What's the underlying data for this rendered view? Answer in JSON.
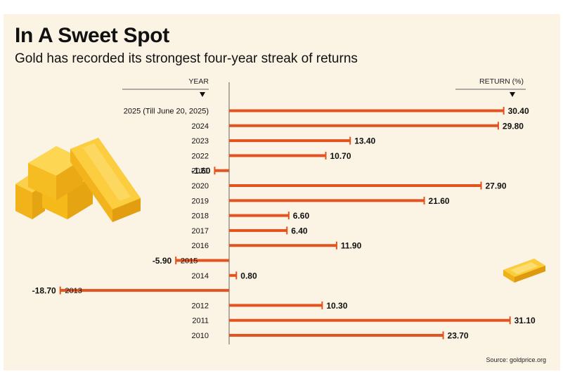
{
  "header": {
    "title": "In A Sweet Spot",
    "subtitle": "Gold has recorded its strongest four-year streak of returns"
  },
  "source": "Source: goldprice.org",
  "colors": {
    "background": "#fbf3e4",
    "bar": "#e2531f",
    "text": "#111111",
    "gold": "#f2b21a"
  },
  "decorations": [
    "gold-bars-stack-illustration",
    "single-gold-bar-illustration"
  ],
  "chart_data": {
    "type": "bar",
    "orientation": "horizontal",
    "category_header": "YEAR",
    "value_header": "RETURN (%)",
    "categories": [
      "2025 (Till June 20, 2025)",
      "2024",
      "2023",
      "2022",
      "2021",
      "2020",
      "2019",
      "2018",
      "2017",
      "2016",
      "2015",
      "2014",
      "2013",
      "2012",
      "2011",
      "2010"
    ],
    "values": [
      30.4,
      29.8,
      13.4,
      10.7,
      -1.6,
      27.9,
      21.6,
      6.6,
      6.4,
      11.9,
      -5.9,
      0.8,
      -18.7,
      10.3,
      31.1,
      23.7
    ],
    "value_labels": [
      "30.40",
      "29.80",
      "13.40",
      "10.70",
      "-1.60",
      "27.90",
      "21.60",
      "6.60",
      "6.40",
      "11.90",
      "-5.90",
      "0.80",
      "-18.70",
      "10.30",
      "31.10",
      "23.70"
    ],
    "grid": false,
    "legend": "none"
  }
}
